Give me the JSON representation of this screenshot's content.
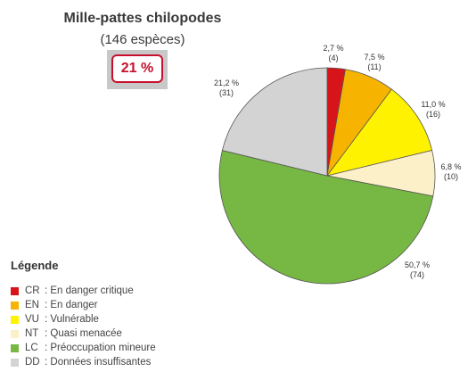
{
  "header": {
    "title": "Mille-pattes chilopodes",
    "subtitle": "(146 espèces)",
    "badge": "21 %"
  },
  "legend": {
    "title": "Légende",
    "items": [
      {
        "code": "CR",
        "sep": ":",
        "label": "En danger critique",
        "color": "#d7141a"
      },
      {
        "code": "EN",
        "sep": ":",
        "label": "En danger",
        "color": "#f6b300"
      },
      {
        "code": "VU",
        "sep": ":",
        "label": "Vulnérable",
        "color": "#fff200"
      },
      {
        "code": "NT",
        "sep": ":",
        "label": "Quasi menacée",
        "color": "#fcf0c8"
      },
      {
        "code": "LC",
        "sep": ":",
        "label": "Préoccupation mineure",
        "color": "#76b843"
      },
      {
        "code": "DD",
        "sep": ":",
        "label": "Données insuffisantes",
        "color": "#d3d3d3"
      }
    ]
  },
  "chart_data": {
    "type": "pie",
    "categories": [
      "CR",
      "EN",
      "VU",
      "NT",
      "LC",
      "DD"
    ],
    "values": [
      2.7,
      7.5,
      11.0,
      6.8,
      50.7,
      21.2
    ],
    "counts": [
      4,
      11,
      16,
      10,
      74,
      31
    ],
    "labels": [
      "2,7 %",
      "7,5 %",
      "11,0 %",
      "6,8 %",
      "50,7 %",
      "21,2 %"
    ],
    "count_labels": [
      "(4)",
      "(11)",
      "(16)",
      "(10)",
      "(74)",
      "(31)"
    ],
    "colors": [
      "#d7141a",
      "#f6b300",
      "#fff200",
      "#fcf0c8",
      "#76b843",
      "#d3d3d3"
    ]
  }
}
